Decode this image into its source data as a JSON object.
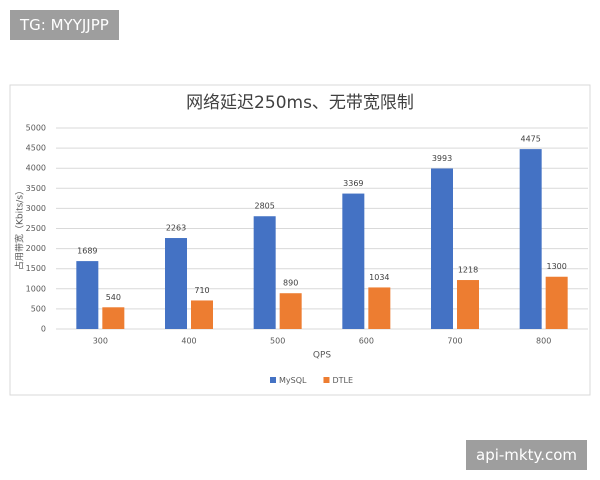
{
  "chart_data": {
    "type": "bar",
    "title": "网络延迟250ms、无带宽限制",
    "y_label": "占用带宽（Kbits/s）",
    "x_label": "QPS",
    "categories": [
      "300",
      "400",
      "500",
      "600",
      "700",
      "800"
    ],
    "series": [
      {
        "name": "MySQL",
        "color": "#4472c4",
        "values": [
          1689,
          2263,
          2805,
          3369,
          3993,
          4475
        ]
      },
      {
        "name": "DTLE",
        "color": "#ed7d31",
        "values": [
          540,
          710,
          890,
          1034,
          1218,
          1300
        ]
      }
    ],
    "ylim": [
      0,
      5000
    ],
    "yticks": [
      0,
      500,
      1000,
      1500,
      2000,
      2500,
      3000,
      3500,
      4000,
      4500,
      5000
    ],
    "grid": true,
    "legend": "bottom"
  },
  "watermarks": [
    "TG: MYYJJPP",
    "api-mkty.com"
  ]
}
